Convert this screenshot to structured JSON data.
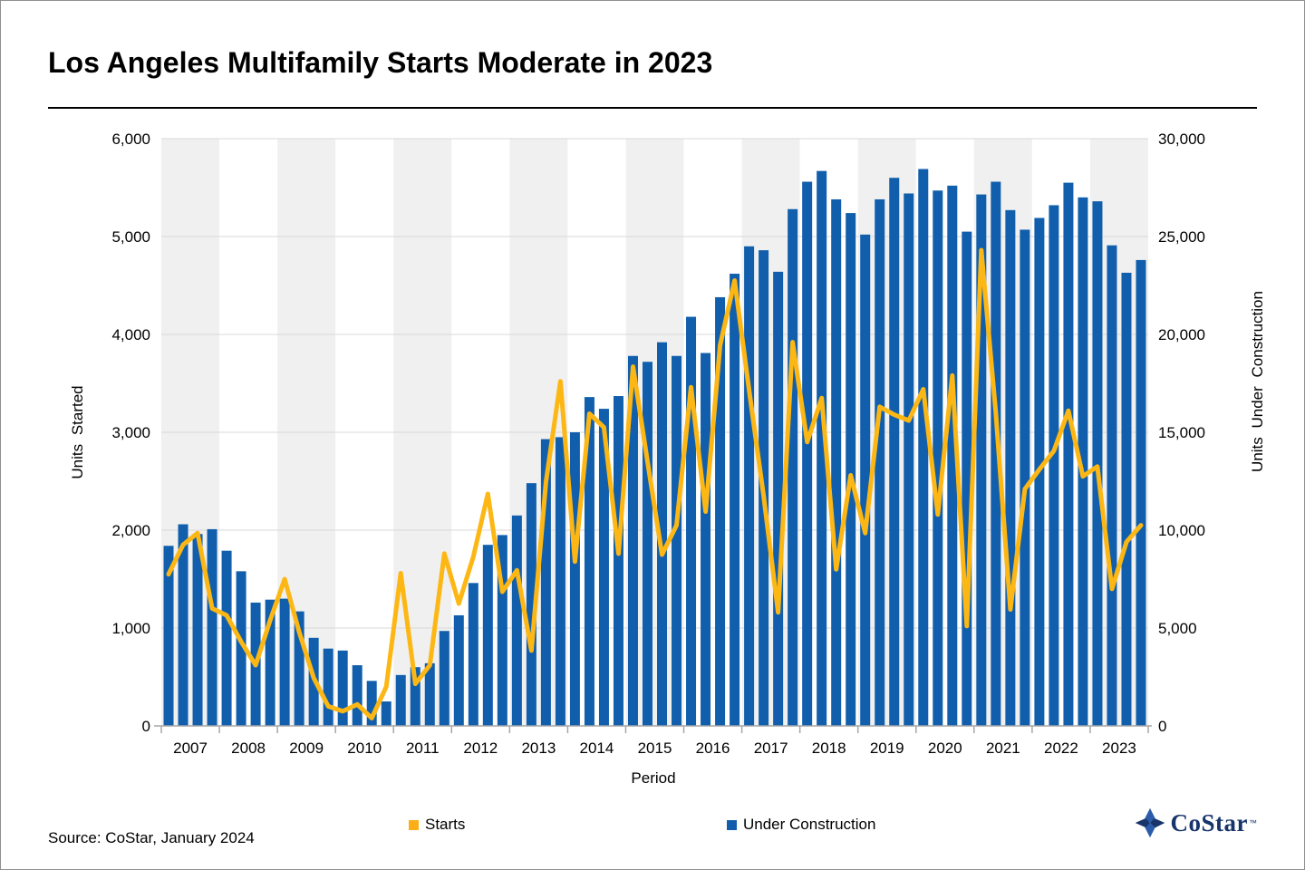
{
  "title": "Los Angeles Multifamily Starts Moderate in 2023",
  "source": "Source: CoStar, January 2024",
  "xlabel": "Period",
  "ylabel_left": "Units Started",
  "ylabel_right": "Units Under Construction",
  "legend": {
    "starts_label": "Starts",
    "uc_label": "Under Construction"
  },
  "logo": {
    "text": "CoStar",
    "tm": "™"
  },
  "colors": {
    "bar": "#115FAC",
    "line": "#FDB714",
    "legend_starts": "#FBAE17",
    "band_gray": "#F0F0F0",
    "band_white": "#FFFFFF",
    "gridline": "#D9D9D9",
    "axis": "#A6A6A6",
    "text": "#000000"
  },
  "chart_data": {
    "type": "bar+line combo, quarterly",
    "years": [
      2007,
      2008,
      2009,
      2010,
      2011,
      2012,
      2013,
      2014,
      2015,
      2016,
      2017,
      2018,
      2019,
      2020,
      2021,
      2022,
      2023
    ],
    "quarters_per_year": 4,
    "xlabel": "Period",
    "ylabel_left": "Units Started",
    "ylabel_right": "Units Under Construction",
    "ylim_left": [
      0,
      6000
    ],
    "ylim_right": [
      0,
      30000
    ],
    "y_left_ticks": [
      "6,000",
      "5,000",
      "4,000",
      "3,000",
      "2,000",
      "1,000",
      "0"
    ],
    "y_right_ticks": [
      "30,000",
      "25,000",
      "20,000",
      "15,000",
      "10,000",
      "5,000",
      "0"
    ],
    "legend_position": "bottom",
    "grid": "horizontal, alternating vertical year bands (odd years shaded)",
    "series": [
      {
        "name": "Starts",
        "type": "line",
        "axis": "left",
        "color": "#FDB714",
        "values": [
          1550,
          1850,
          1970,
          1200,
          1130,
          860,
          620,
          1080,
          1500,
          960,
          490,
          200,
          150,
          220,
          80,
          400,
          1560,
          430,
          620,
          1760,
          1250,
          1730,
          2370,
          1370,
          1590,
          770,
          2490,
          3520,
          1680,
          3190,
          3050,
          1760,
          3670,
          2700,
          1750,
          2050,
          3460,
          2190,
          3890,
          4550,
          3430,
          2350,
          1160,
          3920,
          2900,
          3350,
          1600,
          2560,
          1970,
          3260,
          3180,
          3120,
          3440,
          2160,
          3580,
          1020,
          4860,
          3200,
          1190,
          2420,
          2620,
          2810,
          3220,
          2550,
          2650,
          1400,
          1880,
          2050
        ]
      },
      {
        "name": "Under Construction",
        "type": "bar",
        "axis": "right",
        "color": "#115FAC",
        "values": [
          9200,
          10300,
          9800,
          10050,
          8950,
          7900,
          6300,
          6450,
          6500,
          5850,
          4500,
          3950,
          3850,
          3100,
          2300,
          1250,
          2600,
          3000,
          3200,
          4850,
          5650,
          7300,
          9250,
          9750,
          10750,
          12400,
          14650,
          14750,
          15000,
          16800,
          16200,
          16850,
          18900,
          18600,
          19600,
          18900,
          20900,
          19050,
          21900,
          23100,
          24500,
          24300,
          23200,
          26400,
          27800,
          28350,
          26900,
          26200,
          25100,
          26900,
          28000,
          27200,
          28450,
          27350,
          27600,
          25250,
          27150,
          27800,
          26350,
          25350,
          25950,
          26600,
          27750,
          27000,
          26800,
          24550,
          23150,
          23800
        ]
      }
    ]
  }
}
